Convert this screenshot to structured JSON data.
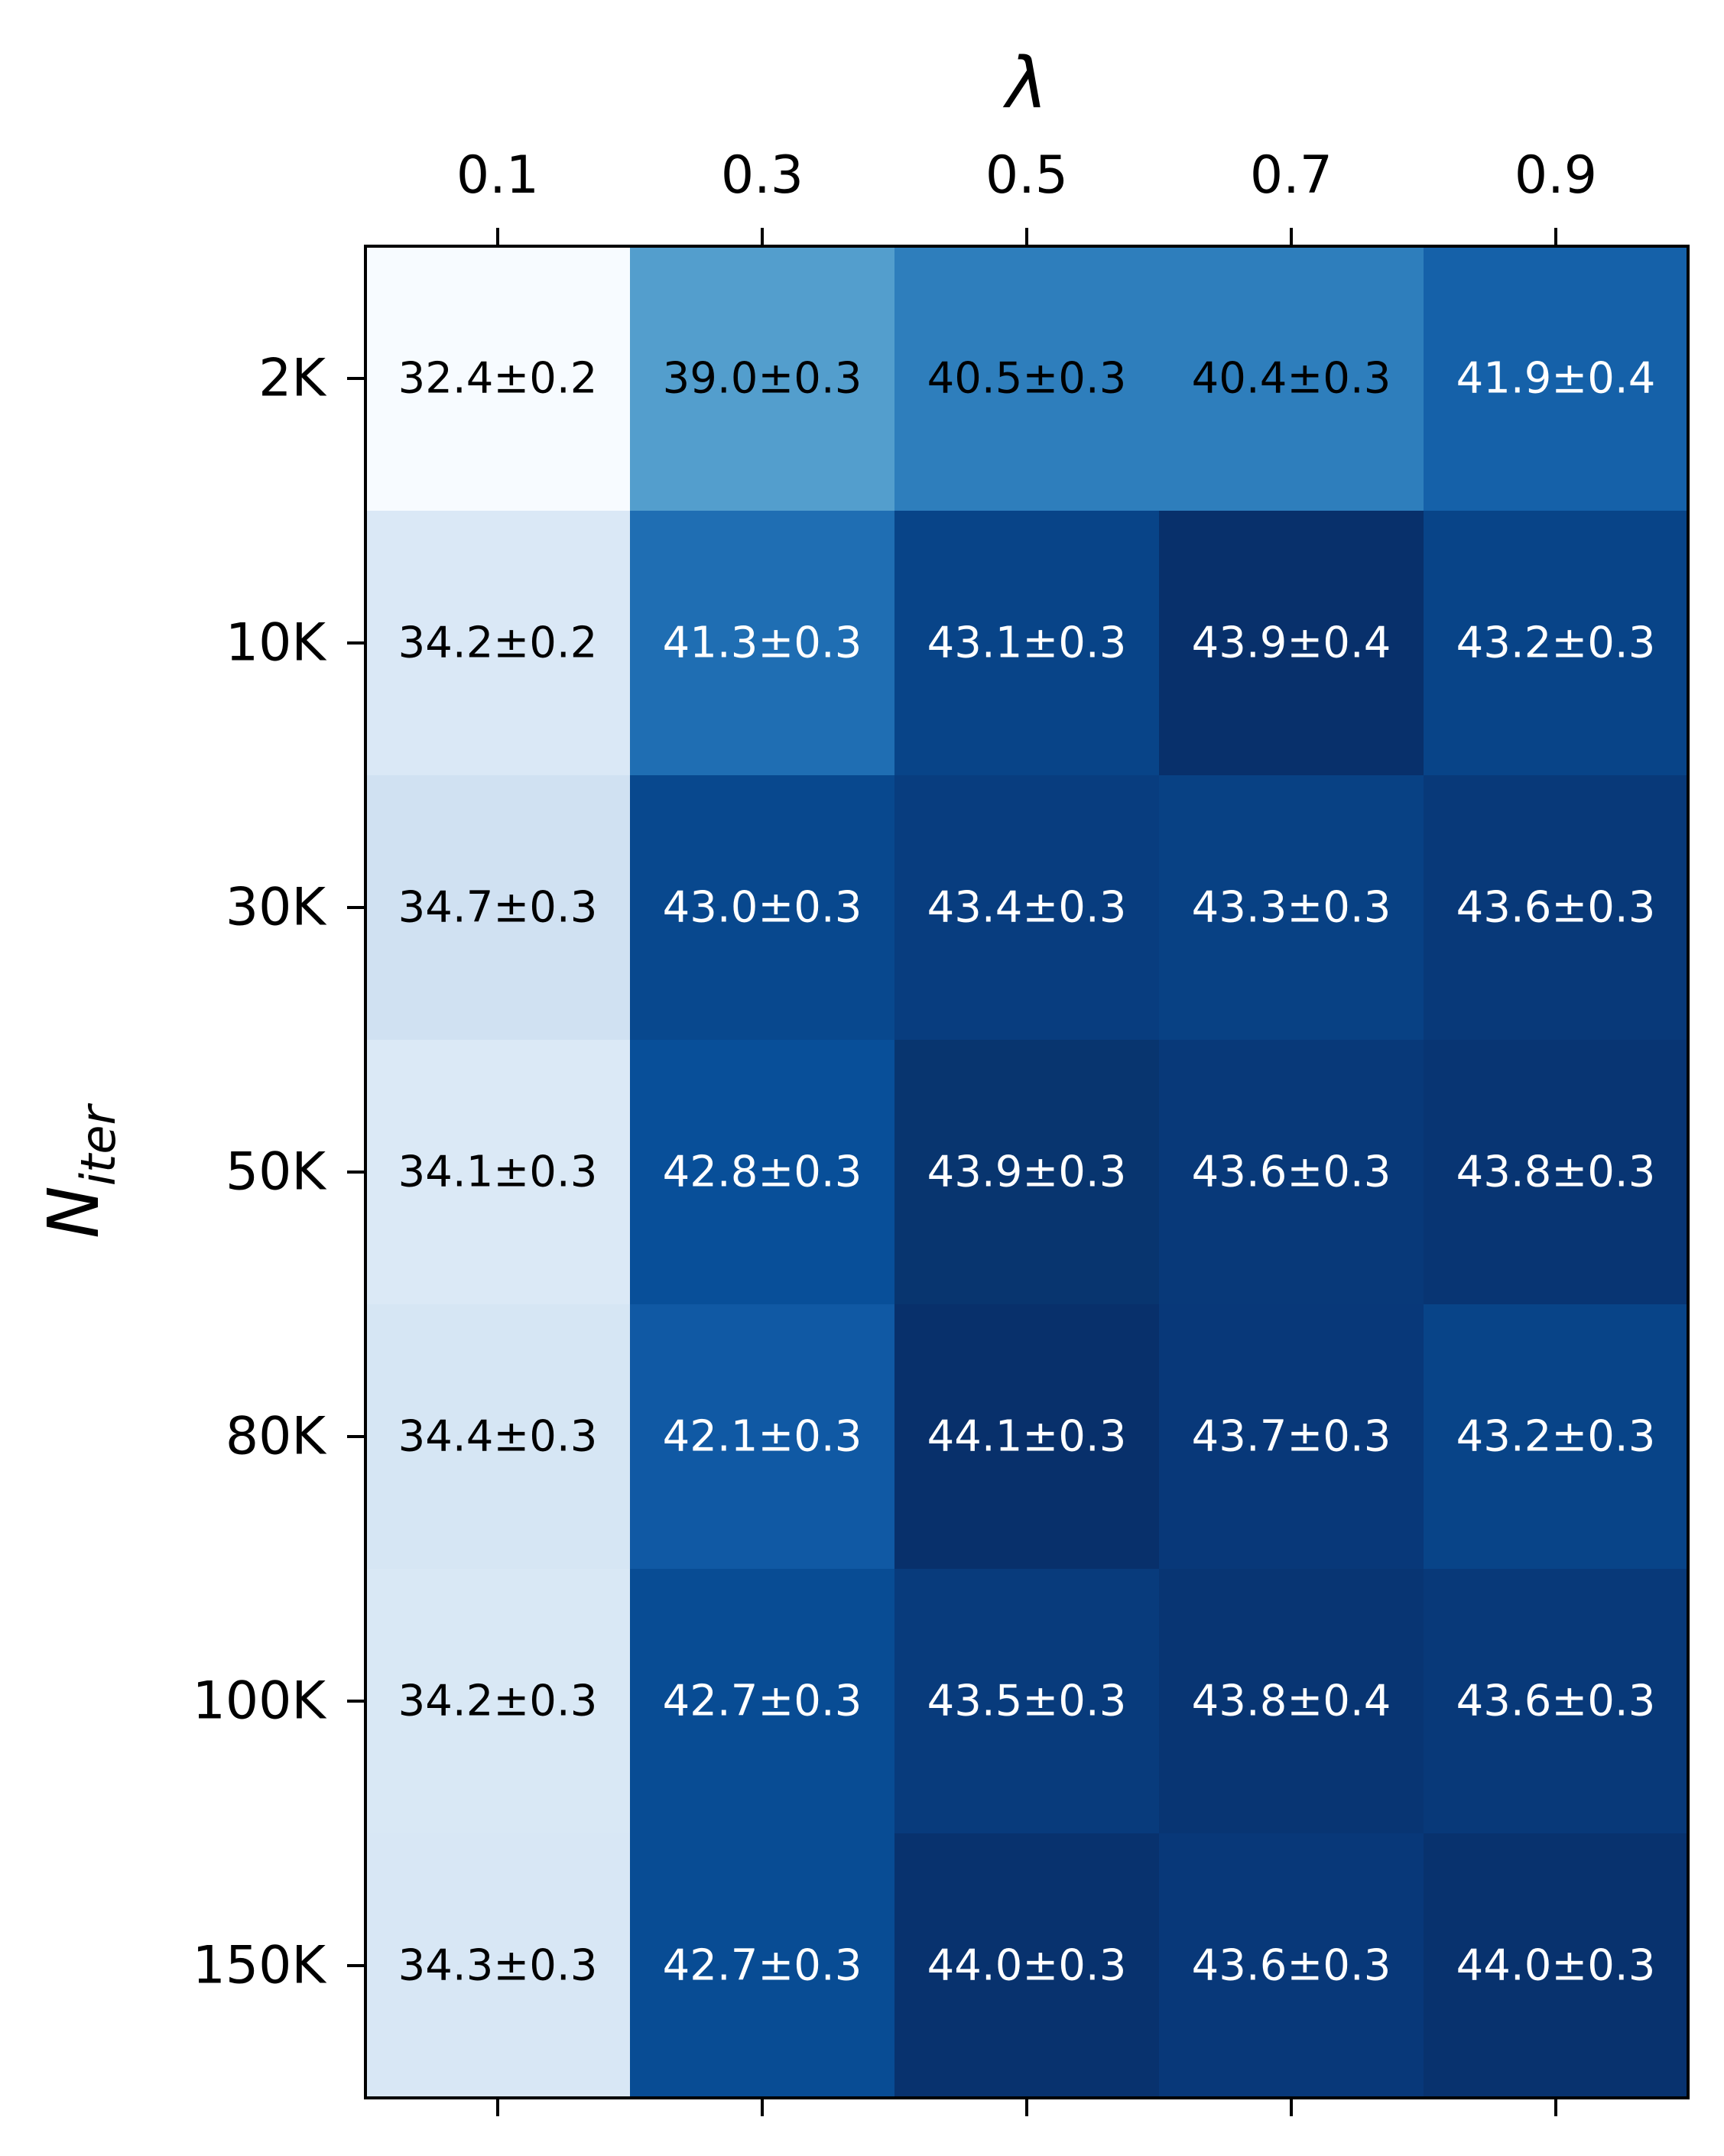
{
  "chart_data": {
    "type": "heatmap",
    "colormap": "Blues",
    "title": "",
    "xlabel": "λ",
    "ylabel": {
      "base": "N",
      "subscript": "iter"
    },
    "x_ticks_position": "top",
    "x": [
      "0.1",
      "0.3",
      "0.5",
      "0.7",
      "0.9"
    ],
    "y": [
      "2K",
      "10K",
      "30K",
      "50K",
      "80K",
      "100K",
      "150K"
    ],
    "values": [
      [
        32.4,
        39.0,
        40.5,
        40.4,
        41.9
      ],
      [
        34.2,
        41.3,
        43.1,
        43.9,
        43.2
      ],
      [
        34.7,
        43.0,
        43.4,
        43.3,
        43.6
      ],
      [
        34.1,
        42.8,
        43.9,
        43.6,
        43.8
      ],
      [
        34.4,
        42.1,
        44.1,
        43.7,
        43.2
      ],
      [
        34.2,
        42.7,
        43.5,
        43.8,
        43.6
      ],
      [
        34.3,
        42.7,
        44.0,
        43.6,
        44.0
      ]
    ],
    "errors": [
      [
        0.2,
        0.3,
        0.3,
        0.3,
        0.4
      ],
      [
        0.2,
        0.3,
        0.3,
        0.4,
        0.3
      ],
      [
        0.3,
        0.3,
        0.3,
        0.3,
        0.3
      ],
      [
        0.3,
        0.3,
        0.3,
        0.3,
        0.3
      ],
      [
        0.3,
        0.3,
        0.3,
        0.3,
        0.3
      ],
      [
        0.3,
        0.3,
        0.3,
        0.4,
        0.3
      ],
      [
        0.3,
        0.3,
        0.3,
        0.3,
        0.3
      ]
    ],
    "labels": [
      [
        "32.4±0.2",
        "39.0±0.3",
        "40.5±0.3",
        "40.4±0.3",
        "41.9±0.4"
      ],
      [
        "34.2±0.2",
        "41.3±0.3",
        "43.1±0.3",
        "43.9±0.4",
        "43.2±0.3"
      ],
      [
        "34.7±0.3",
        "43.0±0.3",
        "43.4±0.3",
        "43.3±0.3",
        "43.6±0.3"
      ],
      [
        "34.1±0.3",
        "42.8±0.3",
        "43.9±0.3",
        "43.6±0.3",
        "43.8±0.3"
      ],
      [
        "34.4±0.3",
        "42.1±0.3",
        "44.1±0.3",
        "43.7±0.3",
        "43.2±0.3"
      ],
      [
        "34.2±0.3",
        "42.7±0.3",
        "43.5±0.3",
        "43.8±0.4",
        "43.6±0.3"
      ],
      [
        "34.3±0.3",
        "42.7±0.3",
        "44.0±0.3",
        "43.6±0.3",
        "44.0±0.3"
      ]
    ],
    "cell_colors": [
      [
        "#f7fbff",
        "#539ecd",
        "#2e7ebc",
        "#2e7ebc",
        "#1561a9"
      ],
      [
        "#dae8f6",
        "#1f6eb3",
        "#084488",
        "#08306b",
        "#084488"
      ],
      [
        "#d0e1f2",
        "#08488e",
        "#083d7f",
        "#084184",
        "#083979"
      ],
      [
        "#dbe9f6",
        "#084f99",
        "#08356f",
        "#083979",
        "#083573"
      ],
      [
        "#d6e6f4",
        "#1059a4",
        "#08306b",
        "#083879",
        "#084488"
      ],
      [
        "#d9e8f5",
        "#084c94",
        "#083b7c",
        "#083573",
        "#083979"
      ],
      [
        "#d8e7f5",
        "#084c94",
        "#08326e",
        "#083879",
        "#08326e"
      ]
    ],
    "text_colors": [
      [
        "#000000",
        "#000000",
        "#000000",
        "#000000",
        "#ffffff"
      ],
      [
        "#000000",
        "#ffffff",
        "#ffffff",
        "#ffffff",
        "#ffffff"
      ],
      [
        "#000000",
        "#ffffff",
        "#ffffff",
        "#ffffff",
        "#ffffff"
      ],
      [
        "#000000",
        "#ffffff",
        "#ffffff",
        "#ffffff",
        "#ffffff"
      ],
      [
        "#000000",
        "#ffffff",
        "#ffffff",
        "#ffffff",
        "#ffffff"
      ],
      [
        "#000000",
        "#ffffff",
        "#ffffff",
        "#ffffff",
        "#ffffff"
      ],
      [
        "#000000",
        "#ffffff",
        "#ffffff",
        "#ffffff",
        "#ffffff"
      ]
    ],
    "grid": false,
    "legend": "none",
    "colorbar": false
  }
}
